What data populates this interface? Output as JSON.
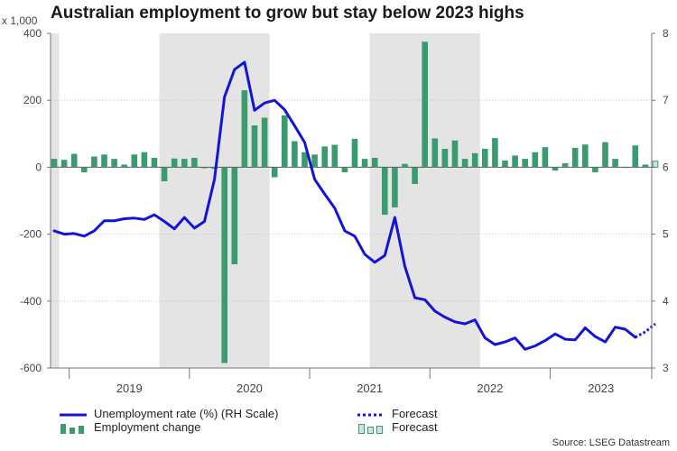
{
  "chart_data": {
    "type": "bar+line",
    "title": "Australian employment to grow but stay below 2023 highs",
    "y_units_label": "x 1,000",
    "left_axis": {
      "ticks": [
        400,
        200,
        0,
        -200,
        -400,
        -600
      ],
      "range": [
        -600,
        400
      ]
    },
    "right_axis": {
      "ticks": [
        8,
        7,
        6,
        5,
        4,
        3
      ],
      "range": [
        3,
        8
      ]
    },
    "year_labels": [
      "2019",
      "2020",
      "2021",
      "2022",
      "2023"
    ],
    "recession_shading": [
      [
        -1,
        0
      ],
      [
        11,
        21
      ],
      [
        32,
        42
      ]
    ],
    "months_start": "2018-10",
    "employment_change": [
      25,
      22,
      40,
      -15,
      32,
      38,
      25,
      8,
      38,
      45,
      28,
      -42,
      26,
      25,
      28,
      -3,
      -5,
      -585,
      -290,
      230,
      125,
      148,
      -30,
      155,
      78,
      45,
      38,
      62,
      67,
      -15,
      85,
      25,
      28,
      -142,
      -120,
      10,
      -50,
      375,
      86,
      55,
      80,
      25,
      42,
      55,
      87,
      20,
      35,
      25,
      45,
      60,
      -10,
      12,
      58,
      68,
      -15,
      75,
      25,
      0,
      65,
      8
    ],
    "employment_forecast": [
      {
        "index": 60,
        "value": 18
      }
    ],
    "unemployment_rate": [
      5.05,
      5.0,
      5.01,
      4.97,
      5.05,
      5.2,
      5.2,
      5.23,
      5.24,
      5.22,
      5.29,
      5.19,
      5.08,
      5.25,
      5.09,
      5.19,
      5.82,
      7.05,
      7.46,
      7.57,
      6.85,
      6.96,
      7.0,
      6.86,
      6.62,
      6.37,
      5.82,
      5.6,
      5.39,
      5.05,
      4.97,
      4.7,
      4.58,
      4.68,
      5.25,
      4.52,
      4.05,
      4.02,
      3.85,
      3.76,
      3.69,
      3.66,
      3.72,
      3.45,
      3.35,
      3.39,
      3.45,
      3.28,
      3.33,
      3.41,
      3.51,
      3.43,
      3.42,
      3.6,
      3.47,
      3.39,
      3.61,
      3.58,
      3.46
    ],
    "unemployment_forecast": [
      3.46,
      3.54,
      3.66
    ],
    "legend": {
      "line": "Unemployment rate (%) (RH Scale)",
      "bars": "Employment change",
      "forecast_line": "Forecast",
      "forecast_bars": "Forecast"
    },
    "colors": {
      "bars": "#3a9a70",
      "forecast_bar_fill": "#cbe7dc",
      "line": "#1414d8",
      "shading": "#e4e4e4"
    }
  },
  "source": "Source: LSEG Datastream"
}
